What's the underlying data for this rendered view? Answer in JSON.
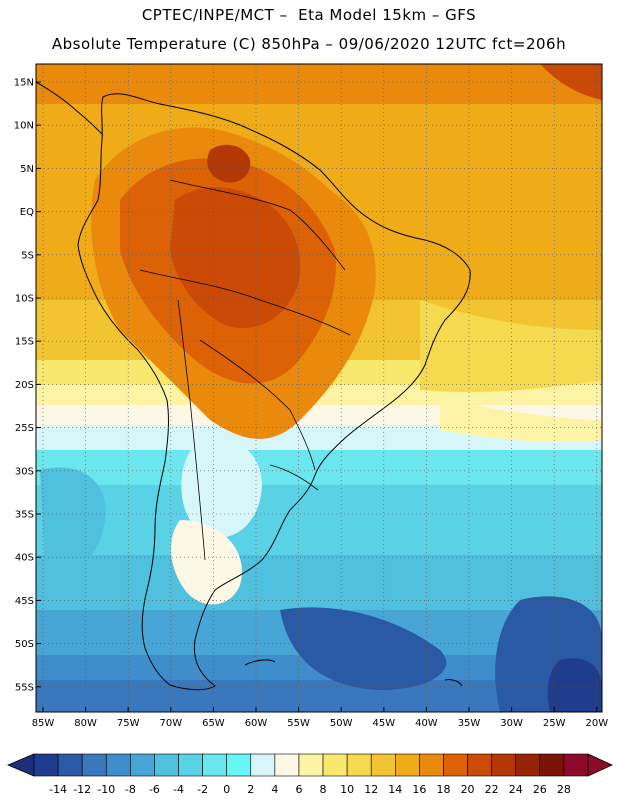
{
  "header": {
    "line1": "CPTEC/INPE/MCT –  Eta Model 15km – GFS",
    "line2": "Absolute Temperature (C) 850hPa – 09/06/2020 12UTC fct=206h"
  },
  "map": {
    "lat_ticks": [
      "15N",
      "10N",
      "5N",
      "EQ",
      "5S",
      "10S",
      "15S",
      "20S",
      "25S",
      "30S",
      "35S",
      "40S",
      "45S",
      "50S",
      "55S"
    ],
    "lon_ticks": [
      "85W",
      "80W",
      "75W",
      "70W",
      "65W",
      "60W",
      "55W",
      "50W",
      "45W",
      "40W",
      "35W",
      "30W",
      "25W",
      "20W"
    ]
  },
  "colorbar": {
    "labels": [
      "-14",
      "-12",
      "-10",
      "-8",
      "-6",
      "-4",
      "-2",
      "0",
      "2",
      "4",
      "6",
      "8",
      "10",
      "12",
      "14",
      "16",
      "18",
      "20",
      "22",
      "24",
      "26",
      "28"
    ],
    "colors": [
      "#1f3d8c",
      "#2a5aa6",
      "#3a78bd",
      "#3f8ecc",
      "#48a6d6",
      "#4fc0dd",
      "#5ad2e6",
      "#6ae6ef",
      "#66f6f6",
      "#d6f6fa",
      "#fdf8e6",
      "#fcf4a4",
      "#f8e86e",
      "#f5d94e",
      "#f2c431",
      "#f0ac18",
      "#ea8a0c",
      "#dd6206",
      "#cb4a06",
      "#b43806",
      "#962406",
      "#7a1408",
      "#8c0a2a"
    ],
    "under_color": "#1c2f78",
    "over_color": "#8c0a2a"
  }
}
